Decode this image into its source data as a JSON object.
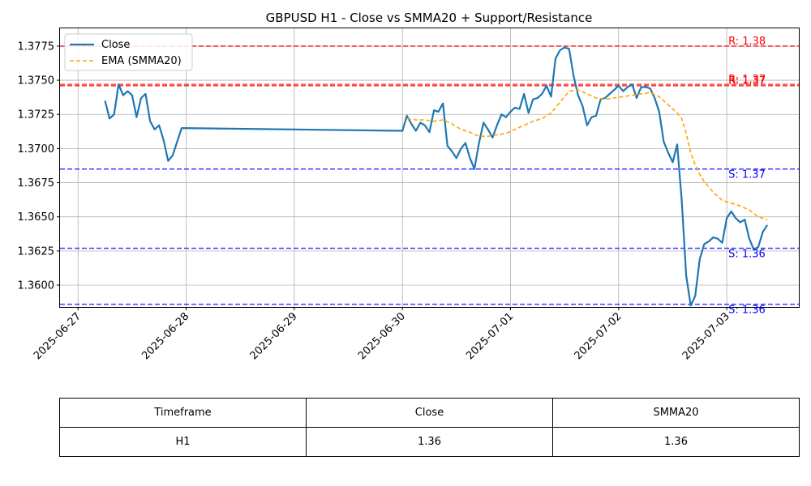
{
  "chart_data": {
    "type": "line",
    "title": "GBPUSD H1 - Close vs SMMA20 + Support/Resistance",
    "xlabel": "",
    "ylabel": "",
    "xlim": [
      "2025-06-26 20:00",
      "2025-07-03 16:00"
    ],
    "ylim": [
      1.3584,
      1.3788
    ],
    "x_ticks": [
      "2025-06-27",
      "2025-06-28",
      "2025-06-29",
      "2025-06-30",
      "2025-07-01",
      "2025-07-02",
      "2025-07-03"
    ],
    "y_ticks": [
      "1.3600",
      "1.3625",
      "1.3650",
      "1.3675",
      "1.3700",
      "1.3725",
      "1.3750",
      "1.3775"
    ],
    "grid": true,
    "legend_position": "top-left",
    "series": [
      {
        "name": "Close",
        "color": "#1f77b4",
        "style": "solid",
        "points": [
          [
            "2025-06-27 06:00",
            1.3735
          ],
          [
            "2025-06-27 07:00",
            1.3722
          ],
          [
            "2025-06-27 08:00",
            1.3725
          ],
          [
            "2025-06-27 09:00",
            1.3747
          ],
          [
            "2025-06-27 10:00",
            1.3739
          ],
          [
            "2025-06-27 11:00",
            1.3742
          ],
          [
            "2025-06-27 12:00",
            1.3739
          ],
          [
            "2025-06-27 13:00",
            1.3723
          ],
          [
            "2025-06-27 14:00",
            1.3737
          ],
          [
            "2025-06-27 15:00",
            1.374
          ],
          [
            "2025-06-27 16:00",
            1.372
          ],
          [
            "2025-06-27 17:00",
            1.3714
          ],
          [
            "2025-06-27 18:00",
            1.3717
          ],
          [
            "2025-06-27 19:00",
            1.3706
          ],
          [
            "2025-06-27 20:00",
            1.3691
          ],
          [
            "2025-06-27 21:00",
            1.3695
          ],
          [
            "2025-06-27 22:00",
            1.3705
          ],
          [
            "2025-06-27 23:00",
            1.3715
          ],
          [
            "2025-06-30 00:00",
            1.3713
          ],
          [
            "2025-06-30 01:00",
            1.3724
          ],
          [
            "2025-06-30 02:00",
            1.3718
          ],
          [
            "2025-06-30 03:00",
            1.3713
          ],
          [
            "2025-06-30 04:00",
            1.3719
          ],
          [
            "2025-06-30 05:00",
            1.3717
          ],
          [
            "2025-06-30 06:00",
            1.3712
          ],
          [
            "2025-06-30 07:00",
            1.3728
          ],
          [
            "2025-06-30 08:00",
            1.3727
          ],
          [
            "2025-06-30 09:00",
            1.3733
          ],
          [
            "2025-06-30 10:00",
            1.3702
          ],
          [
            "2025-06-30 11:00",
            1.3698
          ],
          [
            "2025-06-30 12:00",
            1.3693
          ],
          [
            "2025-06-30 13:00",
            1.37
          ],
          [
            "2025-06-30 14:00",
            1.3704
          ],
          [
            "2025-06-30 15:00",
            1.3693
          ],
          [
            "2025-06-30 16:00",
            1.3685
          ],
          [
            "2025-06-30 17:00",
            1.3704
          ],
          [
            "2025-06-30 18:00",
            1.3719
          ],
          [
            "2025-06-30 19:00",
            1.3714
          ],
          [
            "2025-06-30 20:00",
            1.3708
          ],
          [
            "2025-06-30 21:00",
            1.3717
          ],
          [
            "2025-06-30 22:00",
            1.3725
          ],
          [
            "2025-06-30 23:00",
            1.3723
          ],
          [
            "2025-07-01 00:00",
            1.3727
          ],
          [
            "2025-07-01 01:00",
            1.373
          ],
          [
            "2025-07-01 02:00",
            1.3729
          ],
          [
            "2025-07-01 03:00",
            1.374
          ],
          [
            "2025-07-01 04:00",
            1.3726
          ],
          [
            "2025-07-01 05:00",
            1.3736
          ],
          [
            "2025-07-01 06:00",
            1.3737
          ],
          [
            "2025-07-01 07:00",
            1.374
          ],
          [
            "2025-07-01 08:00",
            1.3746
          ],
          [
            "2025-07-01 09:00",
            1.3738
          ],
          [
            "2025-07-01 10:00",
            1.3766
          ],
          [
            "2025-07-01 11:00",
            1.3772
          ],
          [
            "2025-07-01 12:00",
            1.3774
          ],
          [
            "2025-07-01 13:00",
            1.3773
          ],
          [
            "2025-07-01 14:00",
            1.3753
          ],
          [
            "2025-07-01 15:00",
            1.3739
          ],
          [
            "2025-07-01 16:00",
            1.3731
          ],
          [
            "2025-07-01 17:00",
            1.3717
          ],
          [
            "2025-07-01 18:00",
            1.3723
          ],
          [
            "2025-07-01 19:00",
            1.3724
          ],
          [
            "2025-07-01 20:00",
            1.3736
          ],
          [
            "2025-07-01 21:00",
            1.3737
          ],
          [
            "2025-07-01 22:00",
            1.374
          ],
          [
            "2025-07-01 23:00",
            1.3743
          ],
          [
            "2025-07-02 00:00",
            1.3746
          ],
          [
            "2025-07-02 01:00",
            1.3742
          ],
          [
            "2025-07-02 02:00",
            1.3745
          ],
          [
            "2025-07-02 03:00",
            1.3747
          ],
          [
            "2025-07-02 04:00",
            1.3737
          ],
          [
            "2025-07-02 05:00",
            1.3745
          ],
          [
            "2025-07-02 06:00",
            1.3745
          ],
          [
            "2025-07-02 07:00",
            1.3744
          ],
          [
            "2025-07-02 08:00",
            1.3737
          ],
          [
            "2025-07-02 09:00",
            1.3727
          ],
          [
            "2025-07-02 10:00",
            1.3705
          ],
          [
            "2025-07-02 11:00",
            1.3697
          ],
          [
            "2025-07-02 12:00",
            1.369
          ],
          [
            "2025-07-02 13:00",
            1.3703
          ],
          [
            "2025-07-02 14:00",
            1.3662
          ],
          [
            "2025-07-02 15:00",
            1.3607
          ],
          [
            "2025-07-02 16:00",
            1.3585
          ],
          [
            "2025-07-02 17:00",
            1.3592
          ],
          [
            "2025-07-02 18:00",
            1.3619
          ],
          [
            "2025-07-02 19:00",
            1.363
          ],
          [
            "2025-07-02 20:00",
            1.3632
          ],
          [
            "2025-07-02 21:00",
            1.3635
          ],
          [
            "2025-07-02 22:00",
            1.3634
          ],
          [
            "2025-07-02 23:00",
            1.3631
          ],
          [
            "2025-07-03 00:00",
            1.3649
          ],
          [
            "2025-07-03 01:00",
            1.3654
          ],
          [
            "2025-07-03 02:00",
            1.3649
          ],
          [
            "2025-07-03 03:00",
            1.3646
          ],
          [
            "2025-07-03 04:00",
            1.3648
          ],
          [
            "2025-07-03 05:00",
            1.3634
          ],
          [
            "2025-07-03 06:00",
            1.3626
          ],
          [
            "2025-07-03 07:00",
            1.3628
          ],
          [
            "2025-07-03 08:00",
            1.3639
          ],
          [
            "2025-07-03 09:00",
            1.3644
          ]
        ]
      },
      {
        "name": "EMA (SMMA20)",
        "color": "#ffa500",
        "style": "dashed",
        "points": [
          [
            "2025-06-30 01:00",
            1.3722
          ],
          [
            "2025-06-30 03:00",
            1.3721
          ],
          [
            "2025-06-30 05:00",
            1.3721
          ],
          [
            "2025-06-30 07:00",
            1.372
          ],
          [
            "2025-06-30 09:00",
            1.3721
          ],
          [
            "2025-06-30 11:00",
            1.3718
          ],
          [
            "2025-06-30 13:00",
            1.3714
          ],
          [
            "2025-06-30 15:00",
            1.3712
          ],
          [
            "2025-06-30 17:00",
            1.3709
          ],
          [
            "2025-06-30 19:00",
            1.3709
          ],
          [
            "2025-06-30 21:00",
            1.371
          ],
          [
            "2025-06-30 23:00",
            1.3711
          ],
          [
            "2025-07-01 01:00",
            1.3714
          ],
          [
            "2025-07-01 03:00",
            1.3717
          ],
          [
            "2025-07-01 05:00",
            1.372
          ],
          [
            "2025-07-01 07:00",
            1.3722
          ],
          [
            "2025-07-01 09:00",
            1.3726
          ],
          [
            "2025-07-01 11:00",
            1.3734
          ],
          [
            "2025-07-01 13:00",
            1.3742
          ],
          [
            "2025-07-01 15:00",
            1.3743
          ],
          [
            "2025-07-01 17:00",
            1.374
          ],
          [
            "2025-07-01 19:00",
            1.3737
          ],
          [
            "2025-07-01 21:00",
            1.3736
          ],
          [
            "2025-07-01 23:00",
            1.3737
          ],
          [
            "2025-07-02 01:00",
            1.3738
          ],
          [
            "2025-07-02 03:00",
            1.3739
          ],
          [
            "2025-07-02 05:00",
            1.374
          ],
          [
            "2025-07-02 07:00",
            1.3741
          ],
          [
            "2025-07-02 09:00",
            1.3738
          ],
          [
            "2025-07-02 11:00",
            1.3732
          ],
          [
            "2025-07-02 13:00",
            1.3726
          ],
          [
            "2025-07-02 14:00",
            1.3722
          ],
          [
            "2025-07-02 15:00",
            1.3711
          ],
          [
            "2025-07-02 16:00",
            1.3697
          ],
          [
            "2025-07-02 17:00",
            1.3688
          ],
          [
            "2025-07-02 18:00",
            1.3681
          ],
          [
            "2025-07-02 19:00",
            1.3676
          ],
          [
            "2025-07-02 21:00",
            1.3668
          ],
          [
            "2025-07-02 23:00",
            1.3662
          ],
          [
            "2025-07-03 01:00",
            1.366
          ],
          [
            "2025-07-03 03:00",
            1.3658
          ],
          [
            "2025-07-03 05:00",
            1.3655
          ],
          [
            "2025-07-03 07:00",
            1.365
          ],
          [
            "2025-07-03 09:00",
            1.3648
          ]
        ]
      }
    ],
    "levels": [
      {
        "kind": "resistance",
        "value": 1.3775,
        "label": "R: 1.38",
        "color": "#ff0000"
      },
      {
        "kind": "resistance",
        "value": 1.3747,
        "label": "R: 1.37",
        "color": "#ff0000"
      },
      {
        "kind": "resistance",
        "value": 1.3746,
        "label": "R: 1.37",
        "color": "#ff0000"
      },
      {
        "kind": "support",
        "value": 1.3685,
        "label": "S: 1.37",
        "color": "#0000ff"
      },
      {
        "kind": "support",
        "value": 1.3627,
        "label": "S: 1.36",
        "color": "#0000ff"
      },
      {
        "kind": "support",
        "value": 1.3586,
        "label": "S: 1.36",
        "color": "#0000ff"
      }
    ]
  },
  "table": {
    "headers": [
      "Timeframe",
      "Close",
      "SMMA20"
    ],
    "rows": [
      [
        "H1",
        "1.36",
        "1.36"
      ]
    ]
  }
}
